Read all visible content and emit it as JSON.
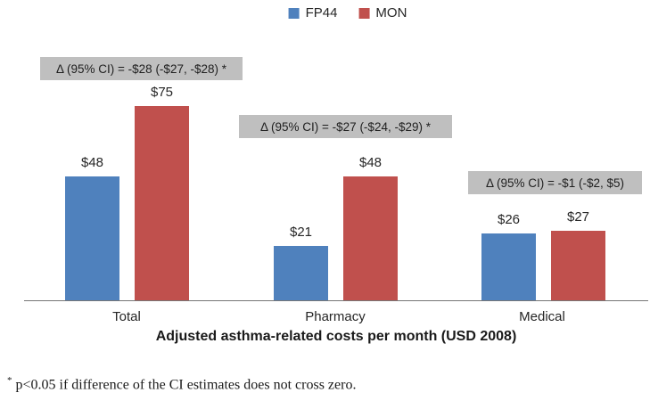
{
  "legend": {
    "items": [
      {
        "label": "FP44",
        "color": "#4f81bd"
      },
      {
        "label": "MON",
        "color": "#c0504d"
      }
    ]
  },
  "chart_data": {
    "type": "bar",
    "categories": [
      "Total",
      "Pharmacy",
      "Medical"
    ],
    "series": [
      {
        "name": "FP44",
        "color": "#4f81bd",
        "values": [
          48,
          21,
          26
        ]
      },
      {
        "name": "MON",
        "color": "#c0504d",
        "values": [
          75,
          48,
          27
        ]
      }
    ],
    "value_labels": [
      [
        "$48",
        "$21",
        "$26"
      ],
      [
        "$75",
        "$48",
        "$27"
      ]
    ],
    "annotations": [
      {
        "group": "Total",
        "text": "Δ (95% CI) = -$28 (-$27, -$28) *"
      },
      {
        "group": "Pharmacy",
        "text": "Δ (95% CI) = -$27 (-$24, -$29) *"
      },
      {
        "group": "Medical",
        "text": "Δ (95% CI) = -$1 (-$2, $5)"
      }
    ],
    "xlabel": "Adjusted asthma-related costs per month (USD 2008)",
    "ylabel": "",
    "ylim": [
      0,
      115
    ],
    "grid": false,
    "legend_position": "top-center",
    "annotation_bg_color": "#bfbfbf",
    "axis_line_color": "#767676"
  },
  "footnote": {
    "marker": "*",
    "text": "p<0.05 if difference of the CI estimates does not cross zero."
  }
}
